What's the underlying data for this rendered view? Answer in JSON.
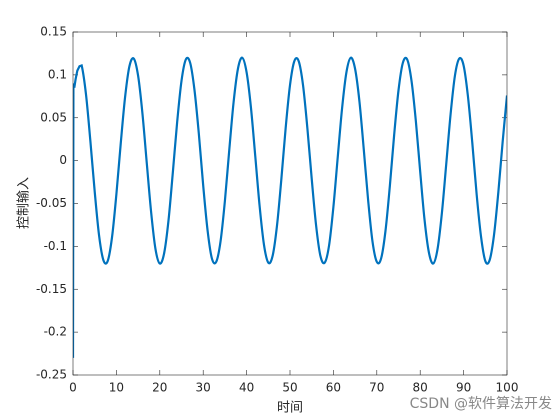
{
  "chart_data": {
    "type": "line",
    "xlabel": "时间",
    "ylabel": "控制输入",
    "watermark": "CSDN @软件算法开发",
    "xlim": [
      0,
      100
    ],
    "xticks": [
      0,
      10,
      20,
      30,
      40,
      50,
      60,
      70,
      80,
      90,
      100
    ],
    "ylim": [
      -0.25,
      0.15
    ],
    "yticks": [
      -0.25,
      -0.2,
      -0.15,
      -0.1,
      -0.05,
      0,
      0.05,
      0.1,
      0.15
    ],
    "series": [
      {
        "color": "#0072BD",
        "x": [
          0,
          0.1,
          0.3,
          0.6,
          1,
          1.5,
          2,
          3,
          4,
          5,
          6,
          7,
          8,
          9,
          10,
          11,
          12,
          13,
          14,
          15,
          16,
          17,
          18,
          19,
          20,
          21,
          22,
          23,
          24,
          25,
          26,
          27,
          28,
          29,
          30,
          31,
          32,
          33,
          34,
          35,
          36,
          37,
          38,
          39,
          40,
          41,
          42,
          43,
          44,
          45,
          46,
          47,
          48,
          49,
          50,
          51,
          52,
          53,
          54,
          55,
          56,
          57,
          58,
          59,
          60,
          61,
          62,
          63,
          64,
          65,
          66,
          67,
          68,
          69,
          70,
          71,
          72,
          73,
          74,
          75,
          76,
          77,
          78,
          79,
          80,
          81,
          82,
          83,
          84,
          85,
          86,
          87,
          88,
          89,
          90,
          91,
          92,
          93,
          94,
          95,
          96,
          97,
          98,
          99,
          100
        ],
        "values": [
          -0.23,
          0.09,
          0.085,
          0.095,
          0.105,
          0.11,
          0.111,
          0.077,
          0.023,
          -0.036,
          -0.087,
          -0.116,
          -0.117,
          -0.089,
          -0.039,
          0.02,
          0.074,
          0.11,
          0.119,
          0.099,
          0.055,
          -0.003,
          -0.06,
          -0.103,
          -0.12,
          -0.108,
          -0.07,
          -0.014,
          0.045,
          0.093,
          0.118,
          0.114,
          0.082,
          0.031,
          -0.029,
          -0.081,
          -0.114,
          -0.118,
          -0.094,
          -0.047,
          0.012,
          0.068,
          0.107,
          0.12,
          0.103,
          0.062,
          0.005,
          -0.053,
          -0.098,
          -0.119,
          -0.111,
          -0.076,
          -0.022,
          0.038,
          0.088,
          0.116,
          0.116,
          0.088,
          0.038,
          -0.021,
          -0.075,
          -0.111,
          -0.119,
          -0.099,
          -0.054,
          0.004,
          0.061,
          0.103,
          0.12,
          0.107,
          0.069,
          0.013,
          -0.046,
          -0.094,
          -0.118,
          -0.114,
          -0.082,
          -0.03,
          0.03,
          0.082,
          0.114,
          0.118,
          0.093,
          0.046,
          -0.013,
          -0.069,
          -0.107,
          -0.12,
          -0.103,
          -0.061,
          -0.004,
          0.054,
          0.099,
          0.119,
          0.111,
          0.075,
          0.021,
          -0.039,
          -0.088,
          -0.117,
          -0.116,
          -0.087,
          -0.037,
          0.022,
          0.076
        ]
      }
    ]
  }
}
